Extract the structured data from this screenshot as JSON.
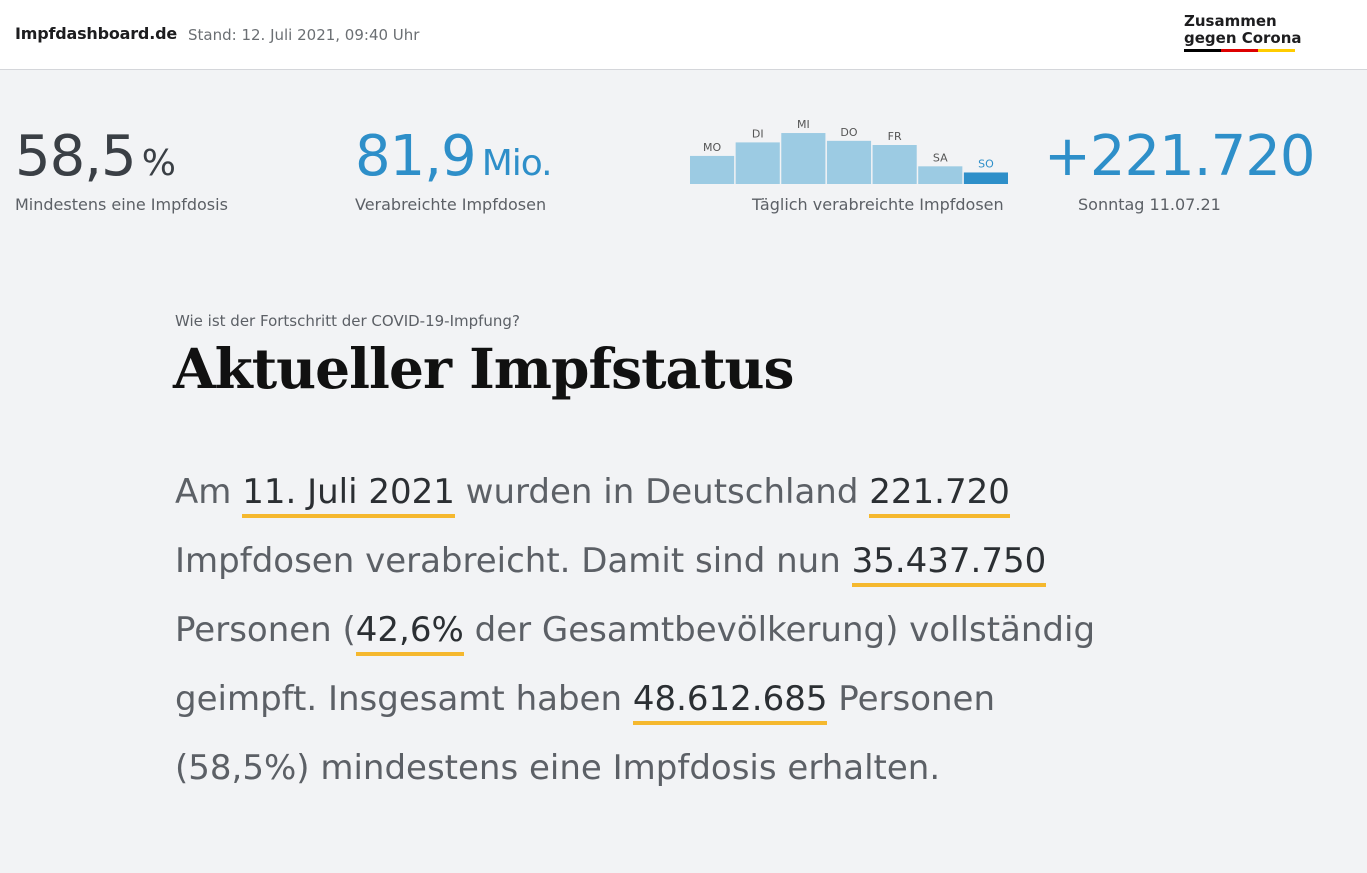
{
  "header": {
    "brand": "Impfdashboard.de",
    "stand": "Stand: 12. Juli 2021, 09:40 Uhr",
    "logo_line1": "Zusammen",
    "logo_line2": "gegen Corona",
    "flag_colors": [
      "#000000",
      "#dd0000",
      "#ffcc00"
    ]
  },
  "stats": {
    "first_dose_value": "58,5",
    "first_dose_unit": "%",
    "first_dose_label": "Mindestens eine Impfdosis",
    "doses_value": "81,9",
    "doses_unit": "Mio.",
    "doses_label": "Verabreichte Impfdosen",
    "daily_value": "+221.720",
    "daily_label": "Sonntag 11.07.21"
  },
  "chart_data": {
    "type": "bar",
    "categories": [
      "MO",
      "DI",
      "MI",
      "DO",
      "FR",
      "SA",
      "SO"
    ],
    "values": [
      540000,
      800000,
      980000,
      830000,
      750000,
      340000,
      221720
    ],
    "ylim": [
      0,
      1000000
    ],
    "highlight_index": 6,
    "colors": {
      "bar": "#9ccbe3",
      "highlight": "#2e8fc9"
    },
    "caption": "Täglich verabreichte Impfdosen"
  },
  "main": {
    "kicker": "Wie ist der Fortschritt der COVID-19-Impfung?",
    "title": "Aktueller Impfstatus",
    "t1": "Am ",
    "date": "11. Juli 2021",
    "t2": " wurden in Deutschland ",
    "daily": "221.720",
    "t3": " Impfdosen verabreicht. Damit sind nun ",
    "full": "35.437.750",
    "t4": " Personen (",
    "full_pct": "42,6%",
    "t5": " der Gesamtbevölkerung) vollständig geimpft. Insgesamt haben ",
    "first": "48.612.685",
    "t6": " Personen (58,5%) mindestens eine Impfdosis erhalten."
  },
  "accent_color": "#f5b82e"
}
